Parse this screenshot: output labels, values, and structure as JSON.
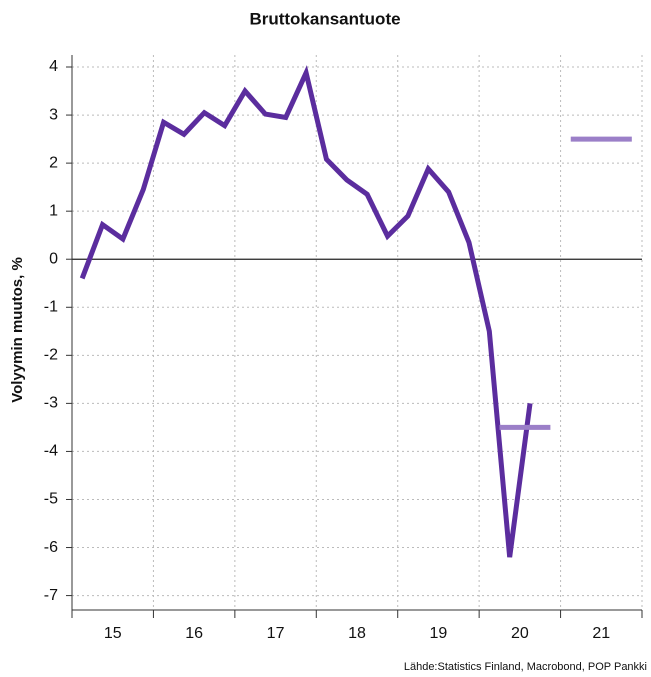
{
  "chart_data": {
    "type": "line",
    "title": "Bruttokansantuote",
    "y_label": "Volyymin muutos, %",
    "source": "Lähde:Statistics Finland, Macrobond, POP Pankki",
    "xlim": [
      2015,
      2022
    ],
    "ylim": [
      -7.3,
      4.25
    ],
    "yticks": [
      -7,
      -6,
      -5,
      -4,
      -3,
      -2,
      -1,
      0,
      1,
      2,
      3,
      4
    ],
    "xgrid": [
      2015,
      2016,
      2017,
      2018,
      2019,
      2020,
      2021,
      2022
    ],
    "xticks": [
      {
        "value": 2015.5,
        "label": "15"
      },
      {
        "value": 2016.5,
        "label": "16"
      },
      {
        "value": 2017.5,
        "label": "17"
      },
      {
        "value": 2018.5,
        "label": "18"
      },
      {
        "value": 2019.5,
        "label": "19"
      },
      {
        "value": 2020.5,
        "label": "20"
      },
      {
        "value": 2021.5,
        "label": "21"
      }
    ],
    "grid": true,
    "series": [
      {
        "color": "#5b2d9e",
        "width": 5,
        "x": [
          2015.125,
          2015.375,
          2015.625,
          2015.875,
          2016.125,
          2016.375,
          2016.625,
          2016.875,
          2017.125,
          2017.375,
          2017.625,
          2017.875,
          2018.125,
          2018.375,
          2018.625,
          2018.875,
          2019.125,
          2019.375,
          2019.625,
          2019.875,
          2020.125,
          2020.375,
          2020.625
        ],
        "values": [
          -0.4,
          0.72,
          0.42,
          1.45,
          2.85,
          2.6,
          3.05,
          2.78,
          3.5,
          3.02,
          2.95,
          3.88,
          2.08,
          1.65,
          1.35,
          0.48,
          0.9,
          1.88,
          1.4,
          0.35,
          -1.5,
          -6.2,
          -3.0
        ]
      },
      {
        "color": "#9b7fc8",
        "width": 5,
        "x": [
          2020.25,
          2020.875,
          2020.95,
          2021.125,
          2021.875
        ],
        "values": [
          -3.5,
          -3.5,
          null,
          2.5,
          2.5
        ]
      }
    ]
  }
}
